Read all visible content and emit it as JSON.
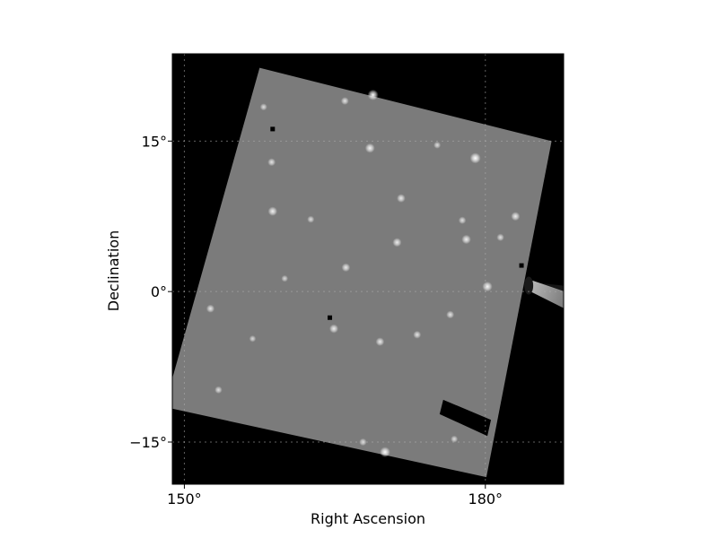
{
  "chart_data": {
    "type": "heatmap",
    "title": "",
    "xlabel": "Right Ascension",
    "ylabel": "Declination",
    "xlim": [
      148.8,
      187.8
    ],
    "ylim": [
      -19.2,
      23.7
    ],
    "x_ticks": [
      {
        "value": 150,
        "label": "150°"
      },
      {
        "value": 180,
        "label": "180°"
      }
    ],
    "y_ticks": [
      {
        "value": 15,
        "label": "15°"
      },
      {
        "value": 0,
        "label": "0°"
      },
      {
        "value": -15,
        "label": "−15°"
      }
    ],
    "grid": true,
    "colormap": "grayscale",
    "background_color": "#000000",
    "field_color": "#7b7b7b",
    "field_corners": [
      {
        "ra": 157.5,
        "dec": 22.3
      },
      {
        "ra": 186.6,
        "dec": 15.0
      },
      {
        "ra": 180.1,
        "dec": -18.5
      },
      {
        "ra": 148.0,
        "dec": -11.5
      }
    ],
    "bright_sources": [
      {
        "ra": 168.8,
        "dec": 19.6,
        "brightness": 1.0
      },
      {
        "ra": 179.0,
        "dec": 13.3,
        "brightness": 1.0
      },
      {
        "ra": 170.0,
        "dec": -16.0,
        "brightness": 0.95
      },
      {
        "ra": 180.2,
        "dec": 0.5,
        "brightness": 0.9
      },
      {
        "ra": 168.5,
        "dec": 14.3,
        "brightness": 0.85
      },
      {
        "ra": 158.8,
        "dec": 8.0,
        "brightness": 0.8
      },
      {
        "ra": 171.2,
        "dec": 4.9,
        "brightness": 0.75
      },
      {
        "ra": 178.1,
        "dec": 5.2,
        "brightness": 0.8
      },
      {
        "ra": 171.6,
        "dec": 9.3,
        "brightness": 0.7
      },
      {
        "ra": 183.0,
        "dec": 7.5,
        "brightness": 0.75
      },
      {
        "ra": 166.1,
        "dec": 2.4,
        "brightness": 0.7
      },
      {
        "ra": 164.9,
        "dec": -3.7,
        "brightness": 0.75
      },
      {
        "ra": 169.5,
        "dec": -5.0,
        "brightness": 0.7
      },
      {
        "ra": 152.6,
        "dec": -1.7,
        "brightness": 0.65
      },
      {
        "ra": 176.5,
        "dec": -2.3,
        "brightness": 0.6
      },
      {
        "ra": 173.2,
        "dec": -4.3,
        "brightness": 0.6
      },
      {
        "ra": 158.7,
        "dec": 12.9,
        "brightness": 0.6
      },
      {
        "ra": 153.4,
        "dec": -9.8,
        "brightness": 0.55
      },
      {
        "ra": 166.0,
        "dec": 19.0,
        "brightness": 0.6
      },
      {
        "ra": 167.8,
        "dec": -15.0,
        "brightness": 0.55
      },
      {
        "ra": 177.7,
        "dec": 7.1,
        "brightness": 0.55
      },
      {
        "ra": 181.5,
        "dec": 5.4,
        "brightness": 0.55
      },
      {
        "ra": 176.9,
        "dec": -14.7,
        "brightness": 0.5
      },
      {
        "ra": 157.9,
        "dec": 18.4,
        "brightness": 0.5
      },
      {
        "ra": 162.6,
        "dec": 7.2,
        "brightness": 0.5
      },
      {
        "ra": 175.2,
        "dec": 14.6,
        "brightness": 0.5
      },
      {
        "ra": 160.0,
        "dec": 1.3,
        "brightness": 0.45
      },
      {
        "ra": 156.8,
        "dec": -4.7,
        "brightness": 0.45
      }
    ],
    "dark_spots": [
      {
        "ra": 158.8,
        "dec": 16.2
      },
      {
        "ra": 164.5,
        "dec": -2.6
      },
      {
        "ra": 183.6,
        "dec": 2.6
      }
    ],
    "comet": {
      "head": {
        "ra": 184.5,
        "dec": 0.6
      },
      "tail_direction_deg": 158,
      "tail_length_deg": 20
    },
    "notch": {
      "from": {
        "ra": 175.8,
        "dec": -11.5
      },
      "to": {
        "ra": 180.2,
        "dec": -13.5
      }
    }
  }
}
